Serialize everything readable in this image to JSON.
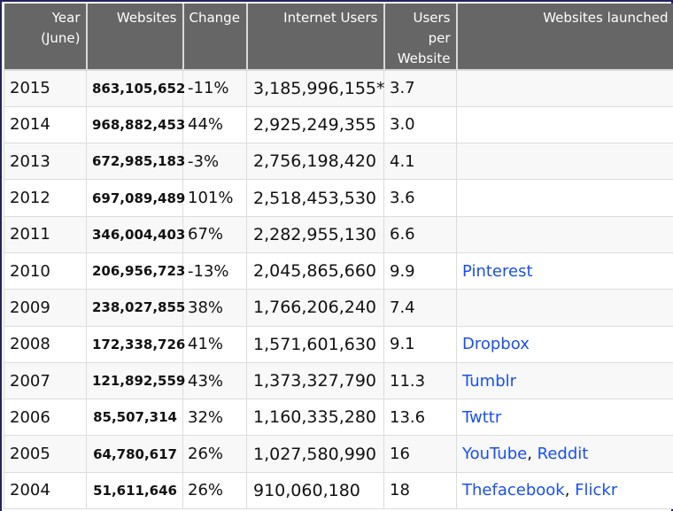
{
  "table": {
    "headers": {
      "year": "Year (June)",
      "year_line1": "Year",
      "year_line2": "(June)",
      "websites": "Websites",
      "change": "Change",
      "internet_users": "Internet Users",
      "users_per_website_line1": "Users",
      "users_per_website_line2": "per",
      "users_per_website_line3": "Website",
      "websites_launched": "Websites launched"
    },
    "rows": [
      {
        "year": "2015",
        "websites": "863,105,652",
        "change": "-11%",
        "internet_users": "3,185,996,155*",
        "users_per_website": "3.7",
        "launched": []
      },
      {
        "year": "2014",
        "websites": "968,882,453",
        "change": "44%",
        "internet_users": "2,925,249,355",
        "users_per_website": "3.0",
        "launched": []
      },
      {
        "year": "2013",
        "websites": "672,985,183",
        "change": "-3%",
        "internet_users": "2,756,198,420",
        "users_per_website": "4.1",
        "launched": []
      },
      {
        "year": "2012",
        "websites": "697,089,489",
        "change": "101%",
        "internet_users": "2,518,453,530",
        "users_per_website": "3.6",
        "launched": []
      },
      {
        "year": "2011",
        "websites": "346,004,403",
        "change": "67%",
        "internet_users": "2,282,955,130",
        "users_per_website": "6.6",
        "launched": []
      },
      {
        "year": "2010",
        "websites": "206,956,723",
        "change": "-13%",
        "internet_users": "2,045,865,660",
        "users_per_website": "9.9",
        "launched": [
          "Pinterest"
        ]
      },
      {
        "year": "2009",
        "websites": "238,027,855",
        "change": "38%",
        "internet_users": "1,766,206,240",
        "users_per_website": "7.4",
        "launched": []
      },
      {
        "year": "2008",
        "websites": "172,338,726",
        "change": "41%",
        "internet_users": "1,571,601,630",
        "users_per_website": "9.1",
        "launched": [
          "Dropbox"
        ]
      },
      {
        "year": "2007",
        "websites": "121,892,559",
        "change": "43%",
        "internet_users": "1,373,327,790",
        "users_per_website": "11.3",
        "launched": [
          "Tumblr"
        ]
      },
      {
        "year": "2006",
        "websites": "85,507,314",
        "change": "32%",
        "internet_users": "1,160,335,280",
        "users_per_website": "13.6",
        "launched": [
          "Twttr"
        ]
      },
      {
        "year": "2005",
        "websites": "64,780,617",
        "change": "26%",
        "internet_users": "1,027,580,990",
        "users_per_website": "16",
        "launched": [
          "YouTube",
          "Reddit"
        ]
      },
      {
        "year": "2004",
        "websites": "51,611,646",
        "change": "26%",
        "internet_users": "910,060,180",
        "users_per_website": "18",
        "launched": [
          "Thefacebook",
          "Flickr"
        ]
      }
    ],
    "separator": ", "
  },
  "colors": {
    "header_bg": "#666666",
    "header_text": "#ffffff",
    "link": "#1a4ff0",
    "row_alt": "#f8f8f8",
    "frame": "#23235e"
  }
}
